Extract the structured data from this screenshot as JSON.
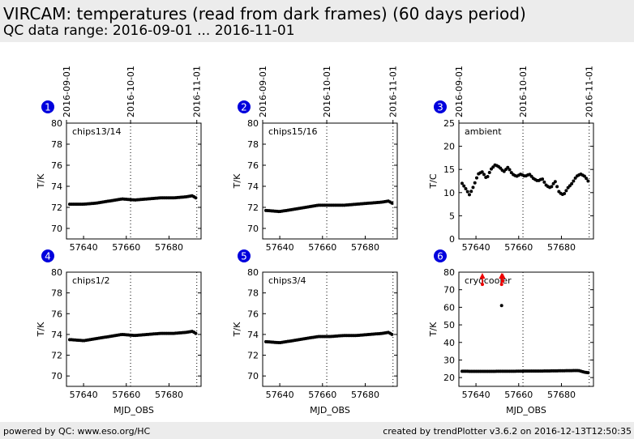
{
  "header": {
    "title": "VIRCAM: temperatures (read from dark frames) (60 days period)",
    "subtitle": "QC data range: 2016-09-01 ... 2016-11-01"
  },
  "footer": {
    "left": "powered by QC: www.eso.org/HC",
    "right": "created by trendPlotter v3.6.2 on 2016-12-13T12:50:35"
  },
  "colors": {
    "marker": "#000000",
    "badge": "#0000dd",
    "outlier": "#ee0000",
    "header_bg": "#ececec"
  },
  "chart_data": [
    {
      "type": "scatter",
      "panel": 1,
      "label": "chips13/14",
      "ylabel": "T/K",
      "xlabel": "",
      "xlim": [
        57632,
        57695
      ],
      "ylim": [
        69,
        80
      ],
      "xticks": [
        57640,
        57660,
        57680
      ],
      "yticks": [
        70,
        72,
        74,
        76,
        78,
        80
      ],
      "date_ticks": [
        {
          "mjd": 57632,
          "label": "2016-09-01"
        },
        {
          "mjd": 57662,
          "label": "2016-10-01"
        },
        {
          "mjd": 57693,
          "label": "2016-11-01"
        }
      ],
      "series": [
        {
          "name": "chips13/14",
          "start": 57633.5,
          "end": 57692.5,
          "x": [
            57634,
            57640,
            57646,
            57652,
            57658,
            57664,
            57670,
            57676,
            57682,
            57688,
            57691,
            57692.5
          ],
          "y": [
            72.3,
            72.3,
            72.4,
            72.6,
            72.8,
            72.7,
            72.8,
            72.9,
            72.9,
            73.0,
            73.1,
            72.9
          ]
        }
      ],
      "outliers": []
    },
    {
      "type": "scatter",
      "panel": 2,
      "label": "chips15/16",
      "ylabel": "T/K",
      "xlabel": "",
      "xlim": [
        57632,
        57695
      ],
      "ylim": [
        69,
        80
      ],
      "xticks": [
        57640,
        57660,
        57680
      ],
      "yticks": [
        70,
        72,
        74,
        76,
        78,
        80
      ],
      "date_ticks": [
        {
          "mjd": 57632,
          "label": "2016-09-01"
        },
        {
          "mjd": 57662,
          "label": "2016-10-01"
        },
        {
          "mjd": 57693,
          "label": "2016-11-01"
        }
      ],
      "series": [
        {
          "name": "chips15/16",
          "start": 57633.5,
          "end": 57692.5,
          "x": [
            57634,
            57640,
            57646,
            57652,
            57658,
            57664,
            57670,
            57676,
            57682,
            57688,
            57691,
            57692.5
          ],
          "y": [
            71.7,
            71.6,
            71.8,
            72.0,
            72.2,
            72.2,
            72.2,
            72.3,
            72.4,
            72.5,
            72.6,
            72.4
          ]
        }
      ],
      "outliers": []
    },
    {
      "type": "scatter",
      "panel": 3,
      "label": "ambient",
      "ylabel": "T/C",
      "xlabel": "",
      "xlim": [
        57632,
        57695
      ],
      "ylim": [
        0,
        25
      ],
      "xticks": [
        57640,
        57660,
        57680
      ],
      "yticks": [
        0,
        5,
        10,
        15,
        20,
        25
      ],
      "date_ticks": [
        {
          "mjd": 57632,
          "label": "2016-09-01"
        },
        {
          "mjd": 57662,
          "label": "2016-10-01"
        },
        {
          "mjd": 57693,
          "label": "2016-11-01"
        }
      ],
      "series": [
        {
          "name": "ambient",
          "start": 57633.5,
          "end": 57692.5,
          "x": [
            57633.5,
            57635,
            57637,
            57639,
            57641,
            57643,
            57645,
            57647,
            57649,
            57651,
            57653,
            57655,
            57657,
            57659,
            57661,
            57663,
            57665,
            57667,
            57669,
            57671,
            57673,
            57675,
            57677,
            57679,
            57681,
            57683,
            57685,
            57687,
            57689,
            57691,
            57692.5
          ],
          "y": [
            12.0,
            11.0,
            9.5,
            11.5,
            14.0,
            14.5,
            13.0,
            15.0,
            16.0,
            15.5,
            14.5,
            15.5,
            14.0,
            13.5,
            14.0,
            13.5,
            14.0,
            13.0,
            12.5,
            13.0,
            11.5,
            11.0,
            12.5,
            10.0,
            9.5,
            11.0,
            12.0,
            13.5,
            14.0,
            13.5,
            12.5
          ]
        }
      ],
      "outliers": []
    },
    {
      "type": "scatter",
      "panel": 4,
      "label": "chips1/2",
      "ylabel": "T/K",
      "xlabel": "MJD_OBS",
      "xlim": [
        57632,
        57695
      ],
      "ylim": [
        69,
        80
      ],
      "xticks": [
        57640,
        57660,
        57680
      ],
      "yticks": [
        70,
        72,
        74,
        76,
        78,
        80
      ],
      "date_ticks": [],
      "series": [
        {
          "name": "chips1/2",
          "start": 57633.5,
          "end": 57692.5,
          "x": [
            57634,
            57640,
            57646,
            57652,
            57658,
            57664,
            57670,
            57676,
            57682,
            57688,
            57691,
            57692.5
          ],
          "y": [
            73.5,
            73.4,
            73.6,
            73.8,
            74.0,
            73.9,
            74.0,
            74.1,
            74.1,
            74.2,
            74.3,
            74.1
          ]
        }
      ],
      "outliers": []
    },
    {
      "type": "scatter",
      "panel": 5,
      "label": "chips3/4",
      "ylabel": "T/K",
      "xlabel": "MJD_OBS",
      "xlim": [
        57632,
        57695
      ],
      "ylim": [
        69,
        80
      ],
      "xticks": [
        57640,
        57660,
        57680
      ],
      "yticks": [
        70,
        72,
        74,
        76,
        78,
        80
      ],
      "date_ticks": [],
      "series": [
        {
          "name": "chips3/4",
          "start": 57633.5,
          "end": 57692.5,
          "x": [
            57634,
            57640,
            57646,
            57652,
            57658,
            57664,
            57670,
            57676,
            57682,
            57688,
            57691,
            57692.5
          ],
          "y": [
            73.3,
            73.2,
            73.4,
            73.6,
            73.8,
            73.8,
            73.9,
            73.9,
            74.0,
            74.1,
            74.2,
            74.0
          ]
        }
      ],
      "outliers": []
    },
    {
      "type": "scatter",
      "panel": 6,
      "label": "cryocooler",
      "ylabel": "T/K",
      "xlabel": "MJD_OBS",
      "xlim": [
        57632,
        57695
      ],
      "ylim": [
        15,
        80
      ],
      "xticks": [
        57640,
        57660,
        57680
      ],
      "yticks": [
        20,
        30,
        40,
        50,
        60,
        70,
        80
      ],
      "date_ticks": [],
      "series": [
        {
          "name": "cryocooler",
          "start": 57633.5,
          "end": 57692.5,
          "x": [
            57634,
            57640,
            57646,
            57652,
            57658,
            57664,
            57670,
            57676,
            57682,
            57688,
            57691,
            57692.5
          ],
          "y": [
            23.6,
            23.5,
            23.5,
            23.6,
            23.6,
            23.7,
            23.7,
            23.8,
            23.9,
            24.0,
            23.0,
            22.8
          ]
        }
      ],
      "extra_points": [
        {
          "x": 57652,
          "y": 61
        }
      ],
      "outliers": [
        {
          "x": 57643,
          "y": 73
        },
        {
          "x": 57652,
          "y": 73
        },
        {
          "x": 57652.5,
          "y": 75
        }
      ]
    }
  ]
}
